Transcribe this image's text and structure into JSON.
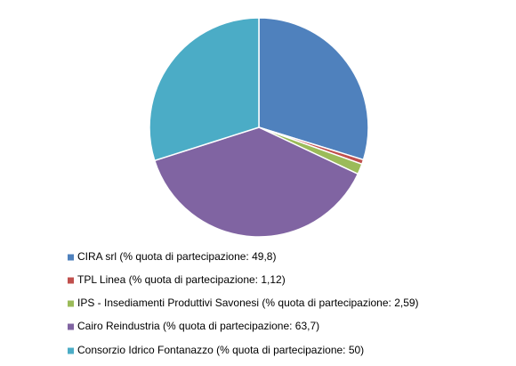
{
  "chart_data": {
    "type": "pie",
    "categories": [
      "CIRA srl (% quota di partecipazione: 49,8)",
      "TPL Linea (% quota di partecipazione: 1,12)",
      "IPS - Insediamenti Produttivi Savonesi (% quota di partecipazione: 2,59)",
      "Cairo Reindustria (% quota di partecipazione: 63,7)",
      "Consorzio Idrico Fontanazzo (% quota di partecipazione: 50)"
    ],
    "values": [
      49.8,
      1.12,
      2.59,
      63.7,
      50
    ],
    "colors": [
      "#4f81bd",
      "#c0504d",
      "#9bbb59",
      "#8064a2",
      "#4bacc6"
    ],
    "legend": "bottom"
  }
}
